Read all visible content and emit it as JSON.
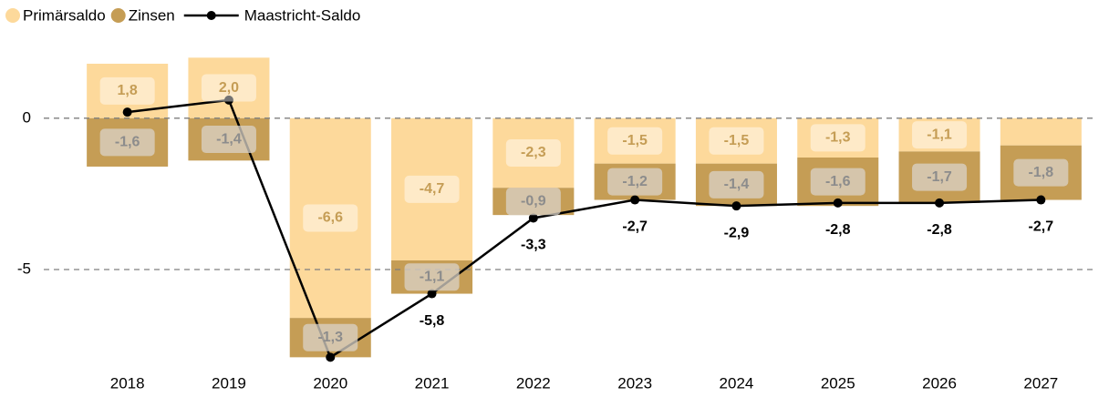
{
  "chart_data": {
    "type": "bar",
    "stacked": true,
    "categories": [
      "2018",
      "2019",
      "2020",
      "2021",
      "2022",
      "2023",
      "2024",
      "2025",
      "2026",
      "2027"
    ],
    "series": [
      {
        "name": "Primärsaldo",
        "type": "bar",
        "color": "#fdd99b",
        "values": [
          1.8,
          2.0,
          -6.6,
          -4.7,
          -2.3,
          -1.5,
          -1.5,
          -1.3,
          -1.1,
          -0.9
        ],
        "value_labels": [
          "1,8",
          "2,0",
          "-6,6",
          "-4,7",
          "-2,3",
          "-1,5",
          "-1,5",
          "-1,3",
          "-1,1",
          null
        ]
      },
      {
        "name": "Zinsen",
        "type": "bar",
        "color": "#c59d55",
        "values": [
          -1.6,
          -1.4,
          -1.3,
          -1.1,
          -0.9,
          -1.2,
          -1.4,
          -1.6,
          -1.7,
          -1.8
        ],
        "value_labels": [
          "-1,6",
          "-1,4",
          "-1,3",
          "-1,1",
          "-0,9",
          "-1,2",
          "-1,4",
          "-1,6",
          "-1,7",
          "-1,8"
        ]
      },
      {
        "name": "Maastricht-Saldo",
        "type": "line",
        "color": "#000000",
        "values": [
          0.2,
          0.6,
          -7.9,
          -5.8,
          -3.3,
          -2.7,
          -2.9,
          -2.8,
          -2.8,
          -2.7
        ],
        "value_labels": [
          null,
          null,
          null,
          "-5,8",
          "-3,3",
          "-2,7",
          "-2,9",
          "-2,8",
          "-2,8",
          "-2,7"
        ]
      }
    ],
    "ylim": [
      -8.1,
      2.1
    ],
    "yticks": [
      0,
      -5
    ],
    "grid": true,
    "legend": "top-left"
  }
}
